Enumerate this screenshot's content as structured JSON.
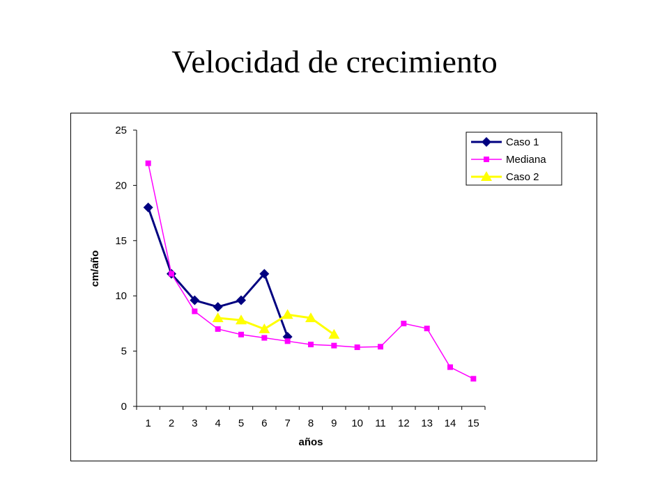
{
  "chart_data": {
    "type": "line",
    "title": "Velocidad de crecimiento",
    "xlabel": "años",
    "ylabel": "cm/año",
    "categories": [
      "1",
      "2",
      "3",
      "4",
      "5",
      "6",
      "7",
      "8",
      "9",
      "10",
      "11",
      "12",
      "13",
      "14",
      "15"
    ],
    "ylim": [
      0,
      25
    ],
    "yticks": [
      0,
      5,
      10,
      15,
      20,
      25
    ],
    "grid": false,
    "legend": "top-right",
    "series": [
      {
        "name": "Caso 1",
        "color": "#000080",
        "marker": "diamond",
        "values": [
          18,
          12,
          9.6,
          9.0,
          9.6,
          12,
          6.3,
          null,
          null,
          null,
          null,
          null,
          null,
          null,
          null
        ]
      },
      {
        "name": "Mediana",
        "color": "#FF00FF",
        "marker": "square",
        "values": [
          22,
          12,
          8.6,
          7.0,
          6.5,
          6.2,
          5.9,
          5.6,
          5.5,
          5.35,
          5.4,
          7.5,
          7.05,
          3.55,
          2.5
        ]
      },
      {
        "name": "Caso 2",
        "color": "#FFFF00",
        "marker": "triangle",
        "values": [
          null,
          null,
          null,
          8.0,
          7.8,
          7.0,
          8.3,
          8.0,
          6.5,
          null,
          null,
          null,
          null,
          null,
          null
        ]
      }
    ]
  }
}
